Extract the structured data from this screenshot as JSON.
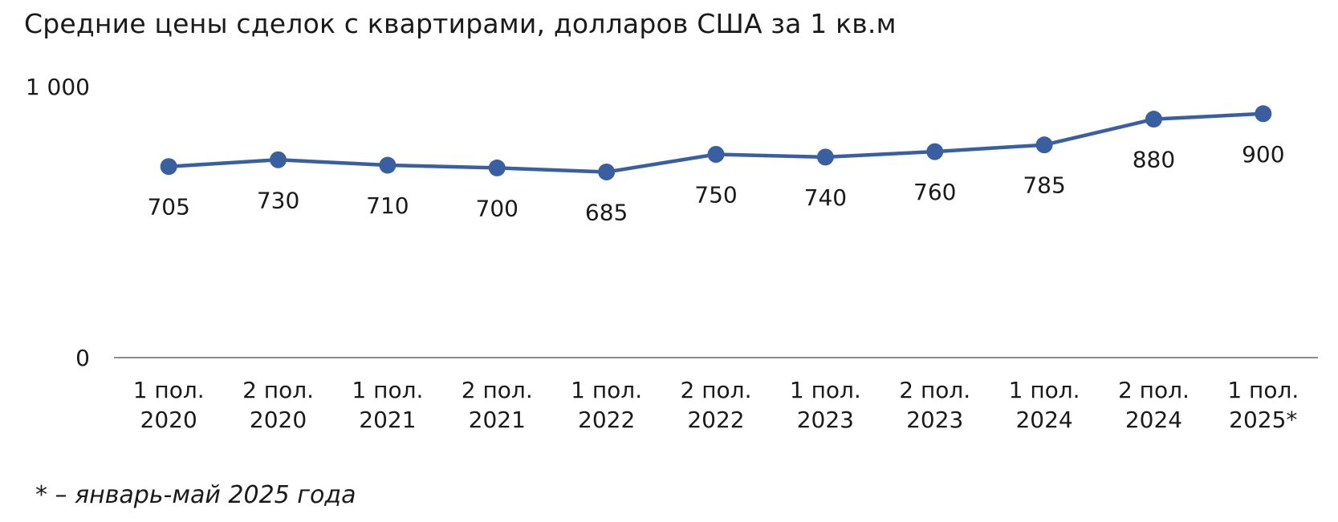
{
  "chart_data": {
    "type": "line",
    "title": "Средние цены сделок с квартирами, долларов США за 1 кв.м",
    "footnote": "* – январь-май 2025 года",
    "categories": [
      [
        "1 пол.",
        "2020"
      ],
      [
        "2 пол.",
        "2020"
      ],
      [
        "1 пол.",
        "2021"
      ],
      [
        "2 пол.",
        "2021"
      ],
      [
        "1 пол.",
        "2022"
      ],
      [
        "2 пол.",
        "2022"
      ],
      [
        "1 пол.",
        "2023"
      ],
      [
        "2 пол.",
        "2023"
      ],
      [
        "1 пол.",
        "2024"
      ],
      [
        "2 пол.",
        "2024"
      ],
      [
        "1 пол.",
        "2025*"
      ]
    ],
    "series": [
      {
        "values": [
          705,
          730,
          710,
          700,
          685,
          750,
          740,
          760,
          785,
          880,
          900
        ],
        "color": "#3a5fa0"
      }
    ],
    "ylim": [
      0,
      1000
    ],
    "yticks": [
      {
        "value": 0,
        "label": "0"
      },
      {
        "value": 1000,
        "label": "1 000"
      }
    ],
    "data_label_position": "below",
    "grid": false,
    "legend": "none",
    "axis_color": "#8c8c8c"
  }
}
